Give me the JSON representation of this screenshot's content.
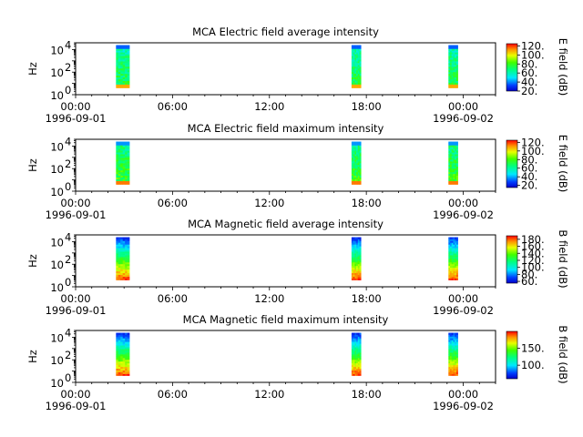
{
  "figure": {
    "background": "#ffffff"
  },
  "chart_data": [
    {
      "type": "heatmap",
      "title": "MCA  Electric field average intensity",
      "ylabel": "Hz",
      "yscale": "log",
      "ylim": [
        1,
        40000
      ],
      "y_ticks": [
        {
          "base": "10",
          "exp": "0"
        },
        {
          "base": "10",
          "exp": "2"
        },
        {
          "base": "10",
          "exp": "4"
        }
      ],
      "x_range": [
        "1996-09-01 00:00",
        "1996-09-02 02:00"
      ],
      "x_ticks": [
        "00:00",
        "06:00",
        "12:00",
        "18:00",
        "00:00"
      ],
      "x_dates": [
        "1996-09-01",
        "1996-09-02"
      ],
      "colorbar": {
        "label": "E field (dB)",
        "range": [
          20,
          125
        ],
        "ticks": [
          "20.",
          "40.",
          "60.",
          "80.",
          "100.",
          "120."
        ]
      },
      "data_blocks": [
        {
          "start": "1996-09-01 02:30",
          "end": "1996-09-01 03:20"
        },
        {
          "start": "1996-09-01 17:05",
          "end": "1996-09-01 17:40"
        },
        {
          "start": "1996-09-01 23:05",
          "end": "1996-09-01 23:40"
        }
      ]
    },
    {
      "type": "heatmap",
      "title": "MCA  Electric field maximum intensity",
      "ylabel": "Hz",
      "yscale": "log",
      "ylim": [
        1,
        40000
      ],
      "y_ticks": [
        {
          "base": "10",
          "exp": "0"
        },
        {
          "base": "10",
          "exp": "2"
        },
        {
          "base": "10",
          "exp": "4"
        }
      ],
      "x_range": [
        "1996-09-01 00:00",
        "1996-09-02 02:00"
      ],
      "x_ticks": [
        "00:00",
        "06:00",
        "12:00",
        "18:00",
        "00:00"
      ],
      "x_dates": [
        "1996-09-01",
        "1996-09-02"
      ],
      "colorbar": {
        "label": "E field (dB)",
        "range": [
          15,
          125
        ],
        "ticks": [
          "20.",
          "40.",
          "60.",
          "80.",
          "100.",
          "120."
        ]
      },
      "data_blocks": [
        {
          "start": "1996-09-01 02:30",
          "end": "1996-09-01 03:20"
        },
        {
          "start": "1996-09-01 17:05",
          "end": "1996-09-01 17:40"
        },
        {
          "start": "1996-09-01 23:05",
          "end": "1996-09-01 23:40"
        }
      ]
    },
    {
      "type": "heatmap",
      "title": "MCA  Magnetic field average intensity",
      "ylabel": "Hz",
      "yscale": "log",
      "ylim": [
        1,
        40000
      ],
      "y_ticks": [
        {
          "base": "10",
          "exp": "0"
        },
        {
          "base": "10",
          "exp": "2"
        },
        {
          "base": "10",
          "exp": "4"
        }
      ],
      "x_range": [
        "1996-09-01 00:00",
        "1996-09-02 02:00"
      ],
      "x_ticks": [
        "00:00",
        "06:00",
        "12:00",
        "18:00",
        "00:00"
      ],
      "x_dates": [
        "1996-09-01",
        "1996-09-02"
      ],
      "colorbar": {
        "label": "B field (dB)",
        "range": [
          55,
          190
        ],
        "ticks": [
          "60.",
          "80.",
          "100.",
          "120.",
          "140.",
          "160.",
          "180."
        ]
      },
      "data_blocks": [
        {
          "start": "1996-09-01 02:30",
          "end": "1996-09-01 03:20"
        },
        {
          "start": "1996-09-01 17:05",
          "end": "1996-09-01 17:40"
        },
        {
          "start": "1996-09-01 23:05",
          "end": "1996-09-01 23:40"
        }
      ]
    },
    {
      "type": "heatmap",
      "title": "MCA  Magnetic field maximum intensity",
      "ylabel": "Hz",
      "yscale": "log",
      "ylim": [
        1,
        40000
      ],
      "y_ticks": [
        {
          "base": "10",
          "exp": "0"
        },
        {
          "base": "10",
          "exp": "2"
        },
        {
          "base": "10",
          "exp": "4"
        }
      ],
      "x_range": [
        "1996-09-01 00:00",
        "1996-09-02 02:00"
      ],
      "x_ticks": [
        "00:00",
        "06:00",
        "12:00",
        "18:00",
        "00:00"
      ],
      "x_dates": [
        "1996-09-01",
        "1996-09-02"
      ],
      "colorbar": {
        "label": "B field (dB)",
        "range": [
          60,
          200
        ],
        "ticks": [
          "100.",
          "150."
        ]
      },
      "data_blocks": [
        {
          "start": "1996-09-01 02:30",
          "end": "1996-09-01 03:20"
        },
        {
          "start": "1996-09-01 17:05",
          "end": "1996-09-01 17:40"
        },
        {
          "start": "1996-09-01 23:05",
          "end": "1996-09-01 23:40"
        }
      ]
    }
  ]
}
